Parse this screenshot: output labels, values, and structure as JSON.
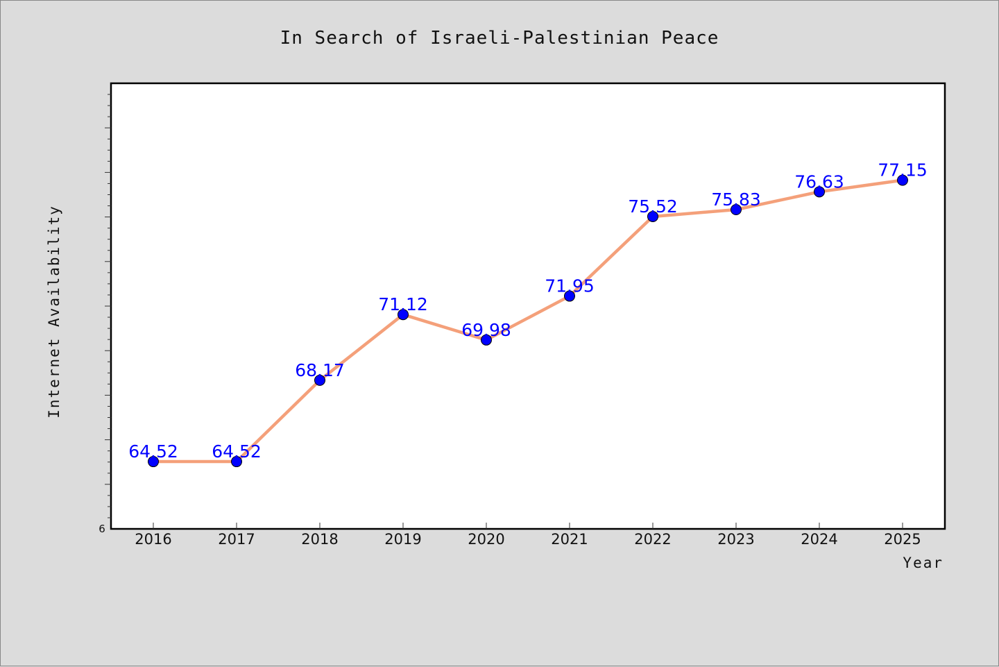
{
  "chart_data": {
    "type": "line",
    "title": "In Search of Israeli-Palestinian Peace",
    "xlabel": "Year",
    "ylabel": "Internet Availability",
    "categories": [
      "2016",
      "2017",
      "2018",
      "2019",
      "2020",
      "2021",
      "2022",
      "2023",
      "2024",
      "2025"
    ],
    "values": [
      64.52,
      64.52,
      68.17,
      71.12,
      69.98,
      71.95,
      75.52,
      75.83,
      76.63,
      77.15
    ],
    "data_labels": [
      "64.52",
      "64.52",
      "68.17",
      "71.12",
      "69.98",
      "71.95",
      "75.52",
      "75.83",
      "76.63",
      "77.15"
    ],
    "y_tick_label": "6",
    "ylim": [
      61.5,
      81.5
    ],
    "grid": false,
    "legend": "none",
    "colors": {
      "line": "#f4a07a",
      "marker": "#0000ff",
      "data_label": "#0000ff",
      "background": "#dcdcdc",
      "plot_background": "#ffffff"
    }
  }
}
